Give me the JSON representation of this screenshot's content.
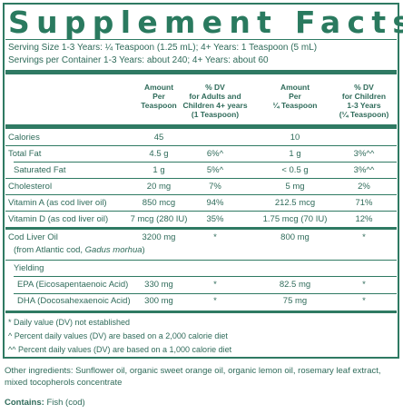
{
  "title": "Supplement Facts",
  "serving_size": "Serving Size 1-3 Years: ¼ Teaspoon (1.25 mL); 4+ Years: 1 Teaspoon (5 mL)",
  "servings_per_container": "Servings per Container 1-3 Years: about 240; 4+ Years: about 60",
  "headers": {
    "amount_1": [
      "Amount",
      "Per",
      "Teaspoon"
    ],
    "dv_adults": [
      "% DV",
      "for Adults and",
      "Children 4+ years",
      "(1 Teaspoon)"
    ],
    "amount_2": [
      "Amount",
      "Per",
      "¼ Teaspoon"
    ],
    "dv_children": [
      "% DV",
      "for Children",
      "1-3 Years",
      "(¼ Teaspoon)"
    ]
  },
  "rows": [
    {
      "name": "Calories",
      "amt1": "45",
      "dv1": "",
      "amt2": "10",
      "dv2": ""
    },
    {
      "name": "Total Fat",
      "amt1": "4.5 g",
      "dv1": "6%^",
      "amt2": "1 g",
      "dv2": "3%^^"
    },
    {
      "name": "Saturated Fat",
      "amt1": "1 g",
      "dv1": "5%^",
      "amt2": "< 0.5 g",
      "dv2": "3%^^"
    },
    {
      "name": "Cholesterol",
      "amt1": "20 mg",
      "dv1": "7%",
      "amt2": "5 mg",
      "dv2": "2%"
    },
    {
      "name": "Vitamin A (as cod liver oil)",
      "amt1": "850 mcg",
      "dv1": "94%",
      "amt2": "212.5 mcg",
      "dv2": "71%"
    },
    {
      "name": "Vitamin D (as cod liver oil)",
      "amt1": "7 mcg (280 IU)",
      "dv1": "35%",
      "amt2": "1.75 mcg (70 IU)",
      "dv2": "12%"
    }
  ],
  "cod_liver_oil": {
    "name": "Cod Liver Oil",
    "source_prefix": "(from Atlantic cod, ",
    "source_species": "Gadus morhua",
    "source_suffix": ")",
    "amt1": "3200 mg",
    "dv1": "*",
    "amt2": "800 mg",
    "dv2": "*"
  },
  "yielding": {
    "label": "Yielding",
    "items": [
      {
        "name": "EPA (Eicosapentaenoic Acid)",
        "amt1": "330 mg",
        "dv1": "*",
        "amt2": "82.5 mg",
        "dv2": "*"
      },
      {
        "name": "DHA (Docosahexaenoic Acid)",
        "amt1": "300 mg",
        "dv1": "*",
        "amt2": "75 mg",
        "dv2": "*"
      }
    ]
  },
  "footnotes": [
    "* Daily value (DV) not established",
    "^ Percent daily values (DV) are based on a 2,000 calorie diet",
    "^^ Percent daily values (DV) are based on a 1,000 calorie diet"
  ],
  "other_ingredients": "Other ingredients: Sunflower oil, organic sweet orange oil, organic lemon oil, rosemary leaf extract, mixed tocopherols concentrate",
  "contains_label": "Contains:",
  "contains_value": " Fish (cod)",
  "colors": {
    "brand_green": "#2f7a63",
    "text": "#2f6b5a",
    "shade": "#e8f0ed"
  }
}
